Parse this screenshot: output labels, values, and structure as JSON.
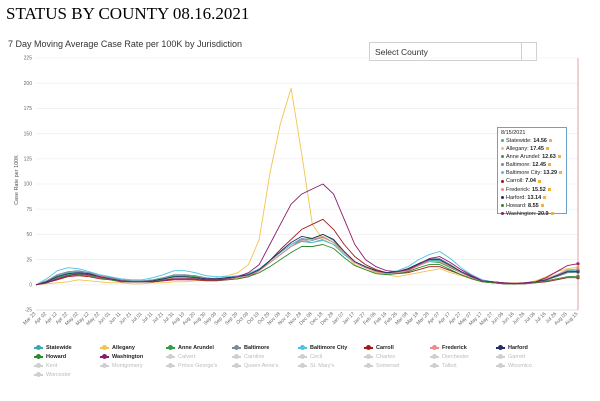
{
  "page": {
    "title": "STATUS BY COUNTY 08.16.2021",
    "chart_title": "7 Day Moving Average Case Rate per 100K by Jurisdiction",
    "select_placeholder": "Select County"
  },
  "tooltip": {
    "date": "8/15/2021",
    "rows": [
      {
        "label": "Statewide",
        "value": "14.56",
        "color": "#3aa8b3"
      },
      {
        "label": "Allegany",
        "value": "17.45",
        "color": "#f2c44d"
      },
      {
        "label": "Anne Arundel",
        "value": "12.63",
        "color": "#2e9e4a"
      },
      {
        "label": "Baltimore",
        "value": "12.45",
        "color": "#7a8a99"
      },
      {
        "label": "Baltimore City",
        "value": "13.29",
        "color": "#4dc3e0"
      },
      {
        "label": "Carroll",
        "value": "7.04",
        "color": "#9b1c1c"
      },
      {
        "label": "Frederick",
        "value": "15.52",
        "color": "#f08a8a"
      },
      {
        "label": "Harford",
        "value": "13.14",
        "color": "#262c66"
      },
      {
        "label": "Howard",
        "value": "8.55",
        "color": "#2d8a2d"
      },
      {
        "label": "Washington",
        "value": "20.9",
        "color": "#8a1a6e"
      }
    ]
  },
  "legend": {
    "active": [
      {
        "label": "Statewide",
        "color": "#3aa8b3"
      },
      {
        "label": "Allegany",
        "color": "#f2c44d"
      },
      {
        "label": "Anne Arundel",
        "color": "#2e9e4a"
      },
      {
        "label": "Baltimore",
        "color": "#7a8a99"
      },
      {
        "label": "Baltimore City",
        "color": "#4dc3e0"
      },
      {
        "label": "Carroll",
        "color": "#9b1c1c"
      },
      {
        "label": "Frederick",
        "color": "#f08a8a"
      },
      {
        "label": "Harford",
        "color": "#262c66"
      },
      {
        "label": "Howard",
        "color": "#2d8a2d"
      },
      {
        "label": "Washington",
        "color": "#8a1a6e"
      }
    ],
    "inactive": [
      "Calvert",
      "Caroline",
      "Cecil",
      "Charles",
      "Dorchester",
      "Garrett",
      "Kent",
      "Montgomery",
      "Prince George's",
      "Queen Anne's",
      "St. Mary's",
      "Somerset",
      "Talbot",
      "Wicomico",
      "Worcester"
    ]
  },
  "chart_data": {
    "type": "line",
    "title": "7 Day Moving Average Case Rate per 100K by Jurisdiction",
    "ylabel": "Case Rate per 100K",
    "xlabel": "",
    "ylim": [
      -25,
      225
    ],
    "yticks": [
      -25,
      0,
      25,
      50,
      75,
      100,
      125,
      150,
      175,
      200,
      225
    ],
    "grid": true,
    "legend_position": "bottom",
    "x_ticks": [
      "Mar 23",
      "Apr 02",
      "Apr 12",
      "Apr 22",
      "May 02",
      "May 12",
      "May 22",
      "Jun 01",
      "Jun 11",
      "Jun 21",
      "Jul 01",
      "Jul 11",
      "Jul 21",
      "Jul 31",
      "Aug 10",
      "Aug 20",
      "Aug 30",
      "Sep 09",
      "Sep 19",
      "Sep 29",
      "Oct 09",
      "Oct 19",
      "Oct 29",
      "Nov 08",
      "Nov 18",
      "Nov 28",
      "Dec 08",
      "Dec 18",
      "Dec 28",
      "Jan 07",
      "Jan 17",
      "Jan 27",
      "Feb 06",
      "Feb 16",
      "Feb 26",
      "Mar 08",
      "Mar 18",
      "Mar 28",
      "Apr 07",
      "Apr 17",
      "Apr 27",
      "May 07",
      "May 17",
      "May 27",
      "Jun 06",
      "Jun 16",
      "Jun 26",
      "Jul 06",
      "Jul 16",
      "Jul 26",
      "Aug 05",
      "Aug 15"
    ],
    "series": [
      {
        "name": "Statewide",
        "color": "#3aa8b3",
        "values": [
          0,
          4,
          9,
          12,
          13,
          12,
          9,
          7,
          5,
          4,
          4,
          5,
          7,
          9,
          9,
          8,
          6,
          6,
          7,
          8,
          10,
          15,
          22,
          30,
          38,
          43,
          42,
          45,
          40,
          30,
          22,
          18,
          14,
          12,
          13,
          15,
          20,
          24,
          24,
          19,
          13,
          8,
          4,
          3,
          2,
          1,
          2,
          3,
          5,
          9,
          14,
          14.56
        ]
      },
      {
        "name": "Allegany",
        "color": "#f2c44d",
        "values": [
          0,
          1,
          2,
          3,
          5,
          4,
          3,
          2,
          2,
          1,
          1,
          2,
          2,
          3,
          3,
          4,
          5,
          7,
          9,
          12,
          20,
          45,
          110,
          160,
          195,
          130,
          60,
          45,
          40,
          32,
          20,
          15,
          12,
          10,
          8,
          10,
          12,
          14,
          16,
          12,
          9,
          6,
          3,
          2,
          2,
          2,
          2,
          4,
          8,
          13,
          16,
          17.45
        ]
      },
      {
        "name": "Anne Arundel",
        "color": "#2e9e4a",
        "values": [
          0,
          3,
          7,
          10,
          11,
          10,
          8,
          6,
          4,
          3,
          3,
          4,
          6,
          8,
          9,
          8,
          6,
          6,
          7,
          8,
          10,
          14,
          22,
          30,
          38,
          45,
          46,
          50,
          44,
          32,
          22,
          17,
          13,
          11,
          12,
          14,
          19,
          23,
          22,
          17,
          12,
          7,
          3,
          2,
          1,
          1,
          2,
          3,
          5,
          8,
          12,
          12.63
        ]
      },
      {
        "name": "Baltimore",
        "color": "#7a8a99",
        "values": [
          0,
          4,
          10,
          13,
          14,
          12,
          9,
          7,
          5,
          4,
          4,
          5,
          7,
          10,
          10,
          9,
          7,
          6,
          7,
          8,
          10,
          15,
          24,
          32,
          40,
          46,
          44,
          47,
          42,
          32,
          23,
          18,
          14,
          12,
          13,
          16,
          21,
          26,
          26,
          20,
          13,
          8,
          4,
          3,
          2,
          1,
          2,
          3,
          5,
          8,
          12,
          12.45
        ]
      },
      {
        "name": "Baltimore City",
        "color": "#4dc3e0",
        "values": [
          0,
          6,
          14,
          17,
          16,
          13,
          10,
          8,
          6,
          5,
          5,
          7,
          10,
          14,
          14,
          12,
          9,
          8,
          8,
          9,
          11,
          16,
          24,
          32,
          40,
          45,
          42,
          44,
          40,
          30,
          22,
          17,
          14,
          12,
          14,
          18,
          25,
          30,
          33,
          26,
          17,
          10,
          5,
          3,
          2,
          2,
          2,
          3,
          5,
          9,
          13,
          13.29
        ]
      },
      {
        "name": "Carroll",
        "color": "#9b1c1c",
        "values": [
          0,
          2,
          5,
          8,
          9,
          8,
          6,
          5,
          3,
          3,
          3,
          3,
          4,
          5,
          5,
          5,
          4,
          4,
          5,
          6,
          8,
          14,
          24,
          35,
          45,
          55,
          60,
          65,
          55,
          40,
          28,
          20,
          15,
          12,
          11,
          12,
          15,
          18,
          18,
          14,
          10,
          6,
          3,
          2,
          1,
          1,
          1,
          2,
          3,
          5,
          7,
          7.04
        ]
      },
      {
        "name": "Frederick",
        "color": "#f08a8a",
        "values": [
          0,
          3,
          8,
          11,
          12,
          11,
          9,
          6,
          4,
          3,
          3,
          4,
          5,
          7,
          7,
          6,
          5,
          5,
          6,
          7,
          9,
          14,
          22,
          30,
          38,
          44,
          45,
          48,
          42,
          32,
          22,
          17,
          13,
          11,
          12,
          14,
          19,
          23,
          23,
          18,
          12,
          7,
          3,
          2,
          2,
          2,
          2,
          3,
          6,
          10,
          15,
          15.52
        ]
      },
      {
        "name": "Harford",
        "color": "#262c66",
        "values": [
          0,
          3,
          8,
          11,
          12,
          11,
          8,
          6,
          4,
          3,
          3,
          4,
          6,
          8,
          8,
          7,
          6,
          6,
          7,
          8,
          10,
          15,
          24,
          33,
          42,
          48,
          46,
          50,
          45,
          33,
          23,
          18,
          14,
          12,
          13,
          16,
          21,
          25,
          25,
          19,
          13,
          8,
          4,
          3,
          2,
          1,
          2,
          3,
          5,
          9,
          13,
          13.14
        ]
      },
      {
        "name": "Howard",
        "color": "#2d8a2d",
        "values": [
          0,
          2,
          6,
          9,
          10,
          9,
          7,
          5,
          3,
          3,
          3,
          3,
          5,
          6,
          6,
          6,
          5,
          5,
          5,
          6,
          8,
          12,
          18,
          25,
          32,
          38,
          38,
          40,
          36,
          27,
          19,
          15,
          11,
          10,
          11,
          13,
          17,
          20,
          20,
          15,
          10,
          6,
          3,
          2,
          1,
          1,
          1,
          2,
          4,
          6,
          8,
          8.55
        ]
      },
      {
        "name": "Washington",
        "color": "#8a1a6e",
        "values": [
          0,
          2,
          6,
          9,
          11,
          10,
          8,
          6,
          4,
          3,
          3,
          3,
          4,
          6,
          6,
          6,
          5,
          5,
          6,
          8,
          12,
          20,
          40,
          60,
          80,
          90,
          95,
          100,
          90,
          65,
          40,
          25,
          18,
          14,
          13,
          15,
          20,
          26,
          28,
          22,
          15,
          9,
          4,
          3,
          2,
          1,
          2,
          3,
          7,
          13,
          19,
          20.9
        ]
      }
    ]
  }
}
